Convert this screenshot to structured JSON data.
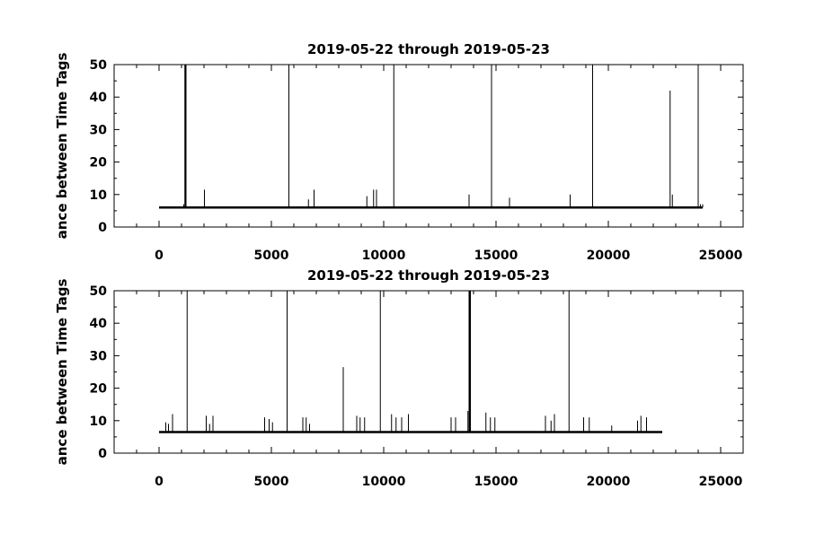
{
  "chart_data": [
    {
      "type": "line",
      "title": "2019-05-22 through 2019-05-23",
      "ylabel": "ance between Time Tags",
      "xlabel": "",
      "xlim": [
        -2000,
        26000
      ],
      "ylim": [
        0,
        50
      ],
      "xticks": [
        0,
        5000,
        10000,
        15000,
        20000,
        25000
      ],
      "xtick_labels": [
        "0",
        "5000",
        "10000",
        "15000",
        "20000",
        "25000"
      ],
      "yticks": [
        0,
        10,
        20,
        30,
        40,
        50
      ],
      "ytick_labels": [
        "0",
        "10",
        "20",
        "30",
        "40",
        "50"
      ],
      "grid": false,
      "baseline": {
        "x_start": 0,
        "x_end": 24200,
        "y": 6
      },
      "spikes": [
        {
          "x": 1150,
          "y": 50
        },
        {
          "x": 1180,
          "y": 50
        },
        {
          "x": 1200,
          "y": 50
        },
        {
          "x": 1100,
          "y": 7
        },
        {
          "x": 2020,
          "y": 11.5
        },
        {
          "x": 5780,
          "y": 50
        },
        {
          "x": 6650,
          "y": 8.5
        },
        {
          "x": 6900,
          "y": 11.5
        },
        {
          "x": 9250,
          "y": 9.5
        },
        {
          "x": 9550,
          "y": 11.5
        },
        {
          "x": 9680,
          "y": 11.5
        },
        {
          "x": 10450,
          "y": 50
        },
        {
          "x": 13800,
          "y": 10
        },
        {
          "x": 14800,
          "y": 50
        },
        {
          "x": 15600,
          "y": 9
        },
        {
          "x": 18300,
          "y": 10
        },
        {
          "x": 19300,
          "y": 50
        },
        {
          "x": 22750,
          "y": 42
        },
        {
          "x": 22850,
          "y": 10
        },
        {
          "x": 24000,
          "y": 50
        },
        {
          "x": 24100,
          "y": 7
        },
        {
          "x": 24200,
          "y": 7
        }
      ]
    },
    {
      "type": "line",
      "title": "2019-05-22 through 2019-05-23",
      "ylabel": "ance between Time Tags",
      "xlabel": "",
      "xlim": [
        -2000,
        26000
      ],
      "ylim": [
        0,
        50
      ],
      "xticks": [
        0,
        5000,
        10000,
        15000,
        20000,
        25000
      ],
      "xtick_labels": [
        "0",
        "5000",
        "10000",
        "15000",
        "20000",
        "25000"
      ],
      "yticks": [
        0,
        10,
        20,
        30,
        40,
        50
      ],
      "ytick_labels": [
        "0",
        "10",
        "20",
        "30",
        "40",
        "50"
      ],
      "grid": false,
      "baseline": {
        "x_start": 0,
        "x_end": 22400,
        "y": 6.5
      },
      "spikes": [
        {
          "x": 300,
          "y": 9.5
        },
        {
          "x": 420,
          "y": 9
        },
        {
          "x": 600,
          "y": 12
        },
        {
          "x": 1250,
          "y": 50
        },
        {
          "x": 2100,
          "y": 11.5
        },
        {
          "x": 2250,
          "y": 9
        },
        {
          "x": 2400,
          "y": 11.5
        },
        {
          "x": 4700,
          "y": 11
        },
        {
          "x": 4900,
          "y": 10.5
        },
        {
          "x": 5050,
          "y": 9.5
        },
        {
          "x": 5700,
          "y": 50
        },
        {
          "x": 6400,
          "y": 11
        },
        {
          "x": 6550,
          "y": 11
        },
        {
          "x": 6700,
          "y": 9
        },
        {
          "x": 8200,
          "y": 26.5
        },
        {
          "x": 8800,
          "y": 11.5
        },
        {
          "x": 8950,
          "y": 11
        },
        {
          "x": 9150,
          "y": 11
        },
        {
          "x": 9850,
          "y": 50
        },
        {
          "x": 10350,
          "y": 12
        },
        {
          "x": 10550,
          "y": 11
        },
        {
          "x": 10800,
          "y": 11
        },
        {
          "x": 11100,
          "y": 12
        },
        {
          "x": 13000,
          "y": 11
        },
        {
          "x": 13200,
          "y": 11
        },
        {
          "x": 13750,
          "y": 13
        },
        {
          "x": 13800,
          "y": 50
        },
        {
          "x": 13830,
          "y": 50
        },
        {
          "x": 13860,
          "y": 50
        },
        {
          "x": 14550,
          "y": 12.5
        },
        {
          "x": 14750,
          "y": 11
        },
        {
          "x": 14950,
          "y": 11
        },
        {
          "x": 17200,
          "y": 11.5
        },
        {
          "x": 17450,
          "y": 10
        },
        {
          "x": 17600,
          "y": 12
        },
        {
          "x": 18250,
          "y": 50
        },
        {
          "x": 18900,
          "y": 11
        },
        {
          "x": 19150,
          "y": 11
        },
        {
          "x": 20150,
          "y": 8.5
        },
        {
          "x": 21300,
          "y": 10
        },
        {
          "x": 21450,
          "y": 11.5
        },
        {
          "x": 21700,
          "y": 11
        }
      ]
    }
  ]
}
